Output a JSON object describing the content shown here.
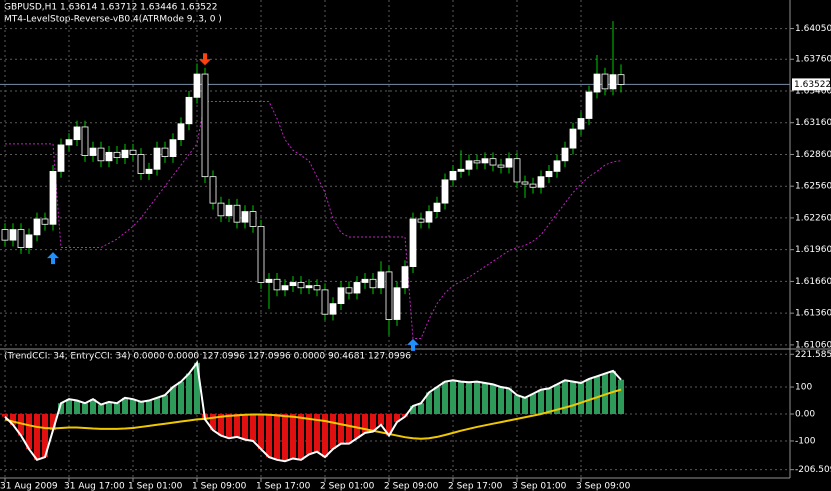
{
  "chart_data": [
    {
      "type": "candlestick",
      "title": "GBPUSD,H1  1.63614 1.63712 1.63446 1.63522",
      "subtitle": "MT4-LevelStop-Reverse-vB0.4(ATRMode 9, 3, 0 )",
      "categories": [
        "31 Aug 2009",
        null,
        null,
        null,
        null,
        null,
        null,
        null,
        "31 Aug 17:00",
        null,
        null,
        null,
        null,
        null,
        null,
        null,
        "1 Sep 01:00",
        null,
        null,
        null,
        null,
        null,
        null,
        null,
        "1 Sep 09:00",
        null,
        null,
        null,
        null,
        null,
        null,
        null,
        "1 Sep 17:00",
        null,
        null,
        null,
        null,
        null,
        null,
        null,
        "2 Sep 01:00",
        null,
        null,
        null,
        null,
        null,
        null,
        null,
        "2 Sep 09:00",
        null,
        null,
        null,
        null,
        null,
        null,
        null,
        "2 Sep 17:00",
        null,
        null,
        null,
        null,
        null,
        null,
        null,
        "3 Sep 01:00",
        null,
        null,
        null,
        null,
        null,
        null,
        null,
        "3 Sep 09:00",
        null,
        null,
        null,
        null,
        null
      ],
      "open": [
        1.6215,
        1.6205,
        1.6215,
        1.6198,
        1.621,
        1.6225,
        1.622,
        1.627,
        1.6295,
        1.63,
        1.6312,
        1.6285,
        1.6292,
        1.628,
        1.6288,
        1.6283,
        1.629,
        1.6286,
        1.6268,
        1.6272,
        1.6292,
        1.6284,
        1.63,
        1.6315,
        1.634,
        1.6362,
        1.6265,
        1.624,
        1.6228,
        1.6238,
        1.6222,
        1.6232,
        1.6218,
        1.6165,
        1.6168,
        1.6158,
        1.6162,
        1.6165,
        1.616,
        1.6162,
        1.6158,
        1.6135,
        1.6145,
        1.616,
        1.6155,
        1.6165,
        1.6168,
        1.616,
        1.6175,
        1.613,
        1.616,
        1.618,
        1.6225,
        1.6222,
        1.6232,
        1.624,
        1.6262,
        1.627,
        1.6272,
        1.628,
        1.6278,
        1.6282,
        1.6276,
        1.6274,
        1.6282,
        1.626,
        1.6258,
        1.6255,
        1.6265,
        1.627,
        1.628,
        1.6292,
        1.631,
        1.632,
        1.6345,
        1.6362,
        1.6348,
        1.63614
      ],
      "high": [
        1.6221,
        1.6221,
        1.6221,
        1.6216,
        1.6231,
        1.6231,
        1.6276,
        1.6301,
        1.6306,
        1.6318,
        1.6318,
        1.6298,
        1.6298,
        1.6294,
        1.6294,
        1.6296,
        1.6296,
        1.6292,
        1.6278,
        1.6298,
        1.6298,
        1.6306,
        1.6321,
        1.6346,
        1.6372,
        1.6368,
        1.6271,
        1.6246,
        1.6244,
        1.6244,
        1.6238,
        1.6238,
        1.6224,
        1.6174,
        1.6174,
        1.6168,
        1.6171,
        1.6171,
        1.6168,
        1.6168,
        1.6164,
        1.6151,
        1.6166,
        1.6166,
        1.6171,
        1.6174,
        1.6174,
        1.6185,
        1.6181,
        1.6166,
        1.6186,
        1.6231,
        1.6231,
        1.6238,
        1.6246,
        1.6268,
        1.6276,
        1.629,
        1.6286,
        1.6286,
        1.6288,
        1.6288,
        1.6282,
        1.6288,
        1.6288,
        1.6266,
        1.6264,
        1.6271,
        1.6276,
        1.6286,
        1.6298,
        1.6316,
        1.6326,
        1.6351,
        1.638,
        1.6368,
        1.6412,
        1.63712
      ],
      "low": [
        1.6199,
        1.6199,
        1.6192,
        1.6192,
        1.6204,
        1.6214,
        1.6214,
        1.6264,
        1.6289,
        1.6294,
        1.6279,
        1.6279,
        1.6274,
        1.6274,
        1.6277,
        1.6277,
        1.628,
        1.6262,
        1.6262,
        1.6266,
        1.6278,
        1.6278,
        1.6294,
        1.6309,
        1.6334,
        1.6259,
        1.6234,
        1.6222,
        1.6222,
        1.6216,
        1.6216,
        1.6212,
        1.6159,
        1.614,
        1.6152,
        1.6152,
        1.6156,
        1.6154,
        1.6154,
        1.6152,
        1.6129,
        1.6129,
        1.6139,
        1.6149,
        1.6149,
        1.6159,
        1.6154,
        1.6154,
        1.6115,
        1.6124,
        1.6154,
        1.6174,
        1.6216,
        1.6216,
        1.6226,
        1.6234,
        1.6256,
        1.6264,
        1.6266,
        1.6272,
        1.6272,
        1.627,
        1.6268,
        1.6268,
        1.6254,
        1.6245,
        1.6249,
        1.6249,
        1.6259,
        1.6264,
        1.6274,
        1.6286,
        1.6304,
        1.6314,
        1.6339,
        1.6342,
        1.6342,
        1.63446
      ],
      "close": [
        1.6205,
        1.6215,
        1.6198,
        1.621,
        1.6225,
        1.622,
        1.627,
        1.6295,
        1.63,
        1.6312,
        1.6285,
        1.6292,
        1.628,
        1.6288,
        1.6283,
        1.629,
        1.6286,
        1.6268,
        1.6272,
        1.6292,
        1.6284,
        1.63,
        1.6315,
        1.634,
        1.6362,
        1.6265,
        1.624,
        1.6228,
        1.6238,
        1.6222,
        1.6232,
        1.6218,
        1.6165,
        1.6168,
        1.6158,
        1.6162,
        1.6165,
        1.616,
        1.6162,
        1.6158,
        1.6135,
        1.6145,
        1.616,
        1.6155,
        1.6165,
        1.6168,
        1.616,
        1.6175,
        1.613,
        1.616,
        1.618,
        1.6225,
        1.6222,
        1.6232,
        1.624,
        1.6262,
        1.627,
        1.6272,
        1.628,
        1.6278,
        1.6282,
        1.6276,
        1.6274,
        1.6282,
        1.626,
        1.6258,
        1.6255,
        1.6265,
        1.627,
        1.628,
        1.6292,
        1.631,
        1.632,
        1.6345,
        1.6362,
        1.6348,
        1.63614,
        1.63522
      ],
      "bull_color": "#ffffff",
      "bear_color": "#000000",
      "wick_color": "#00c800",
      "stop_line": {
        "color": "#c020c0",
        "values": [
          1.6296,
          1.6296,
          1.6296,
          1.6296,
          1.6296,
          1.6296,
          1.6296,
          1.6198,
          1.6198,
          1.6198,
          1.6198,
          1.6198,
          1.6198,
          1.6202,
          1.6206,
          1.6212,
          1.6218,
          1.6226,
          1.6236,
          1.6246,
          1.6256,
          1.6266,
          1.6276,
          1.6286,
          1.6296,
          1.6336,
          1.6336,
          1.6336,
          1.6336,
          1.6336,
          1.6336,
          1.6336,
          1.6336,
          1.6336,
          1.632,
          1.63,
          1.629,
          1.6285,
          1.628,
          1.6265,
          1.625,
          1.6225,
          1.6212,
          1.6208,
          1.6208,
          1.6208,
          1.6208,
          1.6208,
          1.6208,
          1.6208,
          1.6208,
          1.6112,
          1.6112,
          1.613,
          1.6145,
          1.6155,
          1.6162,
          1.6166,
          1.617,
          1.6175,
          1.618,
          1.6185,
          1.619,
          1.6195,
          1.6198,
          1.62,
          1.6204,
          1.621,
          1.622,
          1.623,
          1.624,
          1.625,
          1.6258,
          1.6265,
          1.627,
          1.6276,
          1.6279,
          1.628
        ]
      },
      "up_arrows": {
        "color": "#2090ff",
        "values": [
          null,
          null,
          null,
          null,
          null,
          null,
          1.6188,
          null,
          null,
          null,
          null,
          null,
          null,
          null,
          null,
          null,
          null,
          null,
          null,
          null,
          null,
          null,
          null,
          null,
          null,
          null,
          null,
          null,
          null,
          null,
          null,
          null,
          null,
          null,
          null,
          null,
          null,
          null,
          null,
          null,
          null,
          null,
          null,
          null,
          null,
          null,
          null,
          null,
          null,
          null,
          null,
          1.6106,
          null,
          null,
          null,
          null,
          null,
          null,
          null,
          null,
          null,
          null,
          null,
          null,
          null,
          null,
          null,
          null,
          null,
          null,
          null,
          null,
          null,
          null,
          null,
          null,
          null,
          null
        ]
      },
      "down_arrows": {
        "color": "#ff4010",
        "values": [
          null,
          null,
          null,
          null,
          null,
          null,
          null,
          null,
          null,
          null,
          null,
          null,
          null,
          null,
          null,
          null,
          null,
          null,
          null,
          null,
          null,
          null,
          null,
          null,
          null,
          1.6376,
          null,
          null,
          null,
          null,
          null,
          null,
          null,
          null,
          null,
          null,
          null,
          null,
          null,
          null,
          null,
          null,
          null,
          null,
          null,
          null,
          null,
          null,
          null,
          null,
          null,
          null,
          null,
          null,
          null,
          null,
          null,
          null,
          null,
          null,
          null,
          null,
          null,
          null,
          null,
          null,
          null,
          null,
          null,
          null,
          null,
          null,
          null,
          null,
          null,
          null,
          null,
          null
        ]
      },
      "current_price": {
        "value": 1.63522,
        "label": "1.63522"
      },
      "ylim": [
        1.6104,
        1.6432
      ],
      "yticks": [
        {
          "value": 1.6405,
          "label": "1.64050"
        },
        {
          "value": 1.6376,
          "label": "1.63760"
        },
        {
          "value": 1.6346,
          "label": "1.63460"
        },
        {
          "value": 1.6316,
          "label": "1.63160"
        },
        {
          "value": 1.6286,
          "label": "1.62860"
        },
        {
          "value": 1.6256,
          "label": "1.62560"
        },
        {
          "value": 1.6226,
          "label": "1.62260"
        },
        {
          "value": 1.6196,
          "label": "1.61960"
        },
        {
          "value": 1.6166,
          "label": "1.61660"
        },
        {
          "value": 1.6136,
          "label": "1.61360"
        },
        {
          "value": 1.6106,
          "label": "1.61060"
        }
      ],
      "grid": true
    },
    {
      "type": "bar",
      "title": "(TrendCCI: 34, EntryCCI: 34)  0.0000 0.0000 127.0996 127.0996 0.0000 90.4681 127.0996",
      "values": [
        -10,
        -40,
        -80,
        -130,
        -170,
        -160,
        -60,
        40,
        55,
        50,
        40,
        55,
        35,
        45,
        40,
        60,
        55,
        45,
        50,
        60,
        70,
        100,
        120,
        150,
        190,
        -20,
        -60,
        -80,
        -90,
        -85,
        -95,
        -100,
        -130,
        -160,
        -170,
        -175,
        -165,
        -170,
        -150,
        -140,
        -160,
        -130,
        -110,
        -110,
        -90,
        -70,
        -65,
        -40,
        -80,
        -30,
        -10,
        30,
        40,
        80,
        100,
        120,
        125,
        120,
        118,
        120,
        115,
        110,
        100,
        95,
        70,
        60,
        75,
        90,
        95,
        110,
        125,
        120,
        115,
        130,
        140,
        150,
        160,
        127.0996
      ],
      "pos_color": "#2e9a5a",
      "neg_color": "#e01010",
      "line_color": "#ffffff",
      "signal": {
        "color": "#f0c800",
        "values": [
          -20,
          -28,
          -35,
          -42,
          -48,
          -52,
          -54,
          -52,
          -50,
          -50,
          -52,
          -54,
          -55,
          -55,
          -55,
          -54,
          -52,
          -48,
          -44,
          -40,
          -36,
          -32,
          -28,
          -24,
          -20,
          -18,
          -14,
          -10,
          -7,
          -5,
          -3,
          -2,
          -2,
          -3,
          -5,
          -8,
          -10,
          -14,
          -18,
          -22,
          -26,
          -32,
          -38,
          -44,
          -50,
          -56,
          -62,
          -68,
          -74,
          -80,
          -86,
          -90,
          -92,
          -90,
          -85,
          -78,
          -70,
          -62,
          -55,
          -48,
          -42,
          -36,
          -30,
          -24,
          -18,
          -12,
          -6,
          0,
          8,
          16,
          24,
          32,
          42,
          52,
          62,
          72,
          82,
          90.4681
        ]
      },
      "ylim": [
        -230,
        230
      ],
      "yticks": [
        221.585,
        100,
        {
          "value": 0,
          "label": "0.00"
        },
        -100,
        -206.509
      ],
      "grid": true
    }
  ]
}
